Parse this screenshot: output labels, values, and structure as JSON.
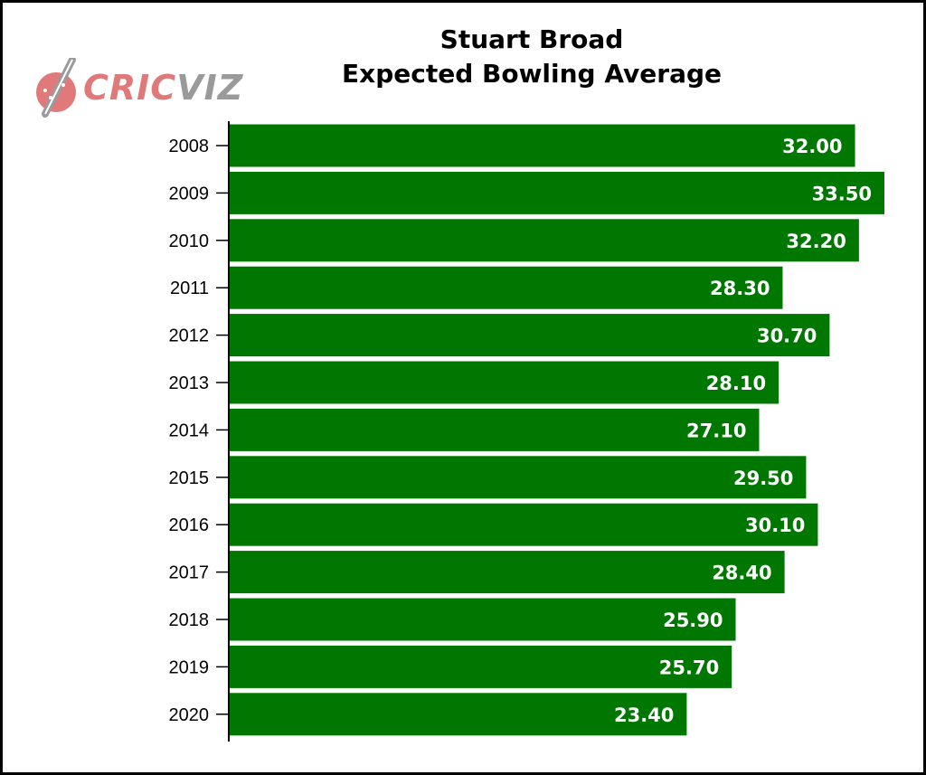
{
  "title_line1": "Stuart Broad",
  "title_line2": "Expected Bowling Average",
  "logo": {
    "text_part1": "CRIC",
    "text_part2": "VIZ",
    "part1_color": "#e07a7a",
    "part2_color": "#9a9a9a"
  },
  "colors": {
    "bar": "#007700",
    "axis": "#000000",
    "bar_label": "#ffffff"
  },
  "chart_data": {
    "type": "bar",
    "orientation": "horizontal",
    "title": "Stuart Broad Expected Bowling Average",
    "categories": [
      "2008",
      "2009",
      "2010",
      "2011",
      "2012",
      "2013",
      "2014",
      "2015",
      "2016",
      "2017",
      "2018",
      "2019",
      "2020"
    ],
    "values": [
      32.0,
      33.5,
      32.2,
      28.3,
      30.7,
      28.1,
      27.1,
      29.5,
      30.1,
      28.4,
      25.9,
      25.7,
      23.4
    ],
    "value_labels": [
      "32.00",
      "33.50",
      "32.20",
      "28.30",
      "30.70",
      "28.10",
      "27.10",
      "29.50",
      "30.10",
      "28.40",
      "25.90",
      "25.70",
      "23.40"
    ],
    "xlabel": "",
    "ylabel": "",
    "xlim": [
      0,
      34
    ],
    "grid": false,
    "legend": "none"
  }
}
